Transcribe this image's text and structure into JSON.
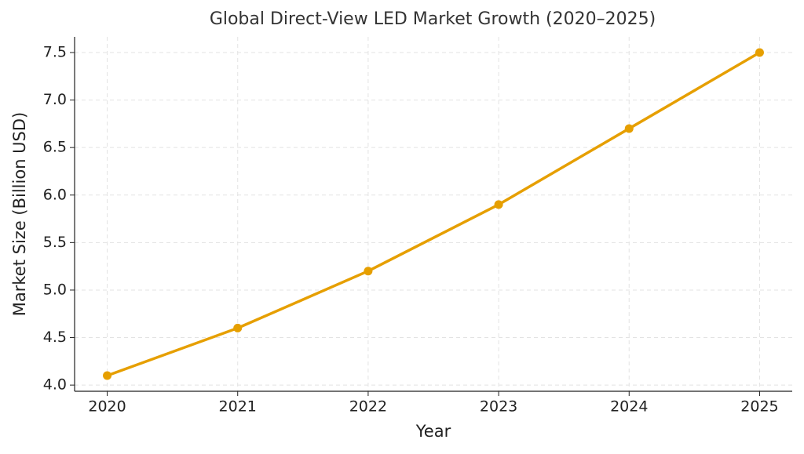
{
  "chart_data": {
    "type": "line",
    "title": "Global Direct-View LED Market Growth (2020–2025)",
    "x_label": "Year",
    "y_label": "Market Size (Billion USD)",
    "x": [
      2020,
      2021,
      2022,
      2023,
      2024,
      2025
    ],
    "series": [
      {
        "color": "#e69f00",
        "values": [
          4.1,
          4.6,
          5.2,
          5.9,
          6.7,
          7.5
        ]
      }
    ],
    "xlim": [
      2019.75,
      2025.25
    ],
    "xticks": [
      2020,
      2021,
      2022,
      2023,
      2024,
      2025
    ],
    "ylim": [
      3.935,
      7.665
    ],
    "yticks": [
      {
        "value": 4,
        "label": "4.0"
      },
      {
        "value": 4.5,
        "label": "4.5"
      },
      {
        "value": 5,
        "label": "5.0"
      },
      {
        "value": 5.5,
        "label": "5.5"
      },
      {
        "value": 6,
        "label": "6.0"
      },
      {
        "value": 6.5,
        "label": "6.5"
      },
      {
        "value": 7,
        "label": "7.0"
      },
      {
        "value": 7.5,
        "label": "7.5"
      }
    ],
    "grid": true
  }
}
